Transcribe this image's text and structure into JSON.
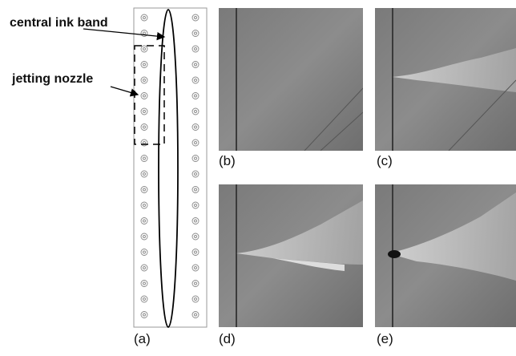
{
  "annotations": {
    "central_ink_band": "central ink band",
    "jetting_nozzle": "jetting nozzle"
  },
  "panels": [
    "(a)",
    "(b)",
    "(c)",
    "(d)",
    "(e)"
  ]
}
